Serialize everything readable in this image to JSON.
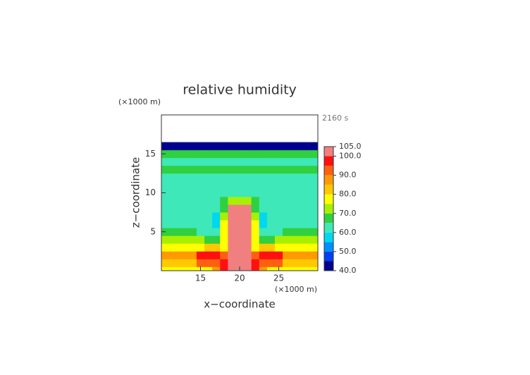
{
  "chart_data": {
    "type": "contour",
    "title": "relative humidity",
    "time_label": "2160 s",
    "x_unit": "(×1000 m)",
    "y_unit": "(×1000 m)",
    "xlabel": "x−coordinate",
    "ylabel": "z−coordinate",
    "xlim": [
      10,
      30
    ],
    "ylim": [
      0,
      20
    ],
    "xticks": [
      15,
      20,
      25
    ],
    "yticks": [
      5,
      10,
      15
    ],
    "x": [
      10,
      11,
      12,
      13,
      14,
      15,
      16,
      17,
      18,
      19,
      20,
      21,
      22,
      23,
      24,
      25,
      26,
      27,
      28,
      29,
      30
    ],
    "y": [
      0,
      1,
      2,
      3,
      4,
      5,
      6,
      7,
      8,
      9,
      10,
      11,
      12,
      13,
      14,
      15,
      16
    ],
    "z": [
      [
        78,
        78,
        78,
        78,
        78,
        78,
        78,
        85,
        95,
        102,
        102,
        102,
        95,
        85,
        78,
        78,
        78,
        78,
        78,
        78,
        78
      ],
      [
        83,
        83,
        83,
        83,
        83,
        90,
        90,
        90,
        96,
        102,
        102,
        102,
        96,
        90,
        90,
        90,
        83,
        83,
        83,
        83,
        83
      ],
      [
        87,
        87,
        87,
        87,
        87,
        96,
        96,
        96,
        92,
        102,
        102,
        102,
        92,
        96,
        96,
        96,
        87,
        87,
        87,
        87,
        87
      ],
      [
        77,
        77,
        77,
        77,
        77,
        77,
        82,
        82,
        78,
        102,
        102,
        102,
        78,
        82,
        82,
        77,
        77,
        77,
        77,
        77,
        77
      ],
      [
        72,
        72,
        72,
        72,
        72,
        70,
        68,
        66,
        76,
        102,
        102,
        102,
        76,
        66,
        68,
        70,
        72,
        72,
        72,
        72,
        72
      ],
      [
        67,
        67,
        67,
        66,
        65,
        63,
        62,
        62,
        76,
        102,
        102,
        102,
        76,
        62,
        62,
        63,
        65,
        66,
        67,
        67,
        67
      ],
      [
        62,
        62,
        62,
        62,
        62,
        62,
        61,
        57,
        76,
        102,
        102,
        102,
        76,
        57,
        61,
        62,
        62,
        62,
        62,
        62,
        62
      ],
      [
        61,
        61,
        61,
        61,
        61,
        61,
        61,
        58,
        72,
        102,
        102,
        102,
        72,
        58,
        61,
        61,
        61,
        61,
        61,
        61,
        61
      ],
      [
        61,
        61,
        61,
        61,
        61,
        61,
        61,
        61,
        67,
        102,
        102,
        102,
        67,
        61,
        61,
        61,
        61,
        61,
        61,
        61,
        61
      ],
      [
        61,
        61,
        61,
        61,
        61,
        61,
        61,
        61,
        66,
        72,
        72,
        72,
        66,
        61,
        61,
        61,
        61,
        61,
        61,
        61,
        61
      ],
      [
        61,
        61,
        61,
        61,
        61,
        61,
        61,
        61,
        61,
        61,
        61,
        61,
        61,
        61,
        61,
        61,
        61,
        61,
        61,
        61,
        61
      ],
      [
        61,
        61,
        61,
        61,
        61,
        61,
        61,
        61,
        61,
        61,
        61,
        61,
        61,
        61,
        61,
        61,
        61,
        61,
        61,
        61,
        61
      ],
      [
        61,
        61,
        61,
        61,
        61,
        61,
        61,
        61,
        61,
        61,
        61,
        61,
        61,
        61,
        61,
        61,
        61,
        61,
        61,
        61,
        61
      ],
      [
        66,
        66,
        66,
        66,
        66,
        66,
        66,
        66,
        66,
        66,
        66,
        66,
        66,
        66,
        66,
        66,
        66,
        66,
        66,
        66,
        66
      ],
      [
        62,
        62,
        62,
        62,
        62,
        62,
        62,
        62,
        62,
        62,
        62,
        62,
        62,
        62,
        62,
        62,
        62,
        62,
        62,
        62,
        62
      ],
      [
        66,
        66,
        66,
        66,
        66,
        66,
        66,
        66,
        66,
        66,
        66,
        66,
        66,
        66,
        66,
        66,
        66,
        66,
        66,
        66,
        66
      ],
      [
        44,
        44,
        44,
        44,
        44,
        44,
        44,
        44,
        44,
        44,
        44,
        44,
        44,
        44,
        44,
        44,
        44,
        44,
        44,
        44,
        44
      ]
    ],
    "levels": [
      40,
      45,
      50,
      55,
      60,
      65,
      70,
      75,
      80,
      85,
      90,
      95,
      100,
      105
    ],
    "colors": [
      "#00008c",
      "#0040f0",
      "#0090ff",
      "#00d8f0",
      "#3ee8b8",
      "#30d040",
      "#a8f000",
      "#ffff00",
      "#ffc800",
      "#ff9a00",
      "#ff6010",
      "#ff1010",
      "#f08080"
    ],
    "colorbar_ticks": [
      {
        "value": 40,
        "label": "40.0"
      },
      {
        "value": 50,
        "label": "50.0"
      },
      {
        "value": 60,
        "label": "60.0"
      },
      {
        "value": 70,
        "label": "70.0"
      },
      {
        "value": 80,
        "label": "80.0"
      },
      {
        "value": 90,
        "label": "90.0"
      },
      {
        "value": 100,
        "label": "100.0"
      },
      {
        "value": 105,
        "label": "105.0"
      }
    ]
  }
}
